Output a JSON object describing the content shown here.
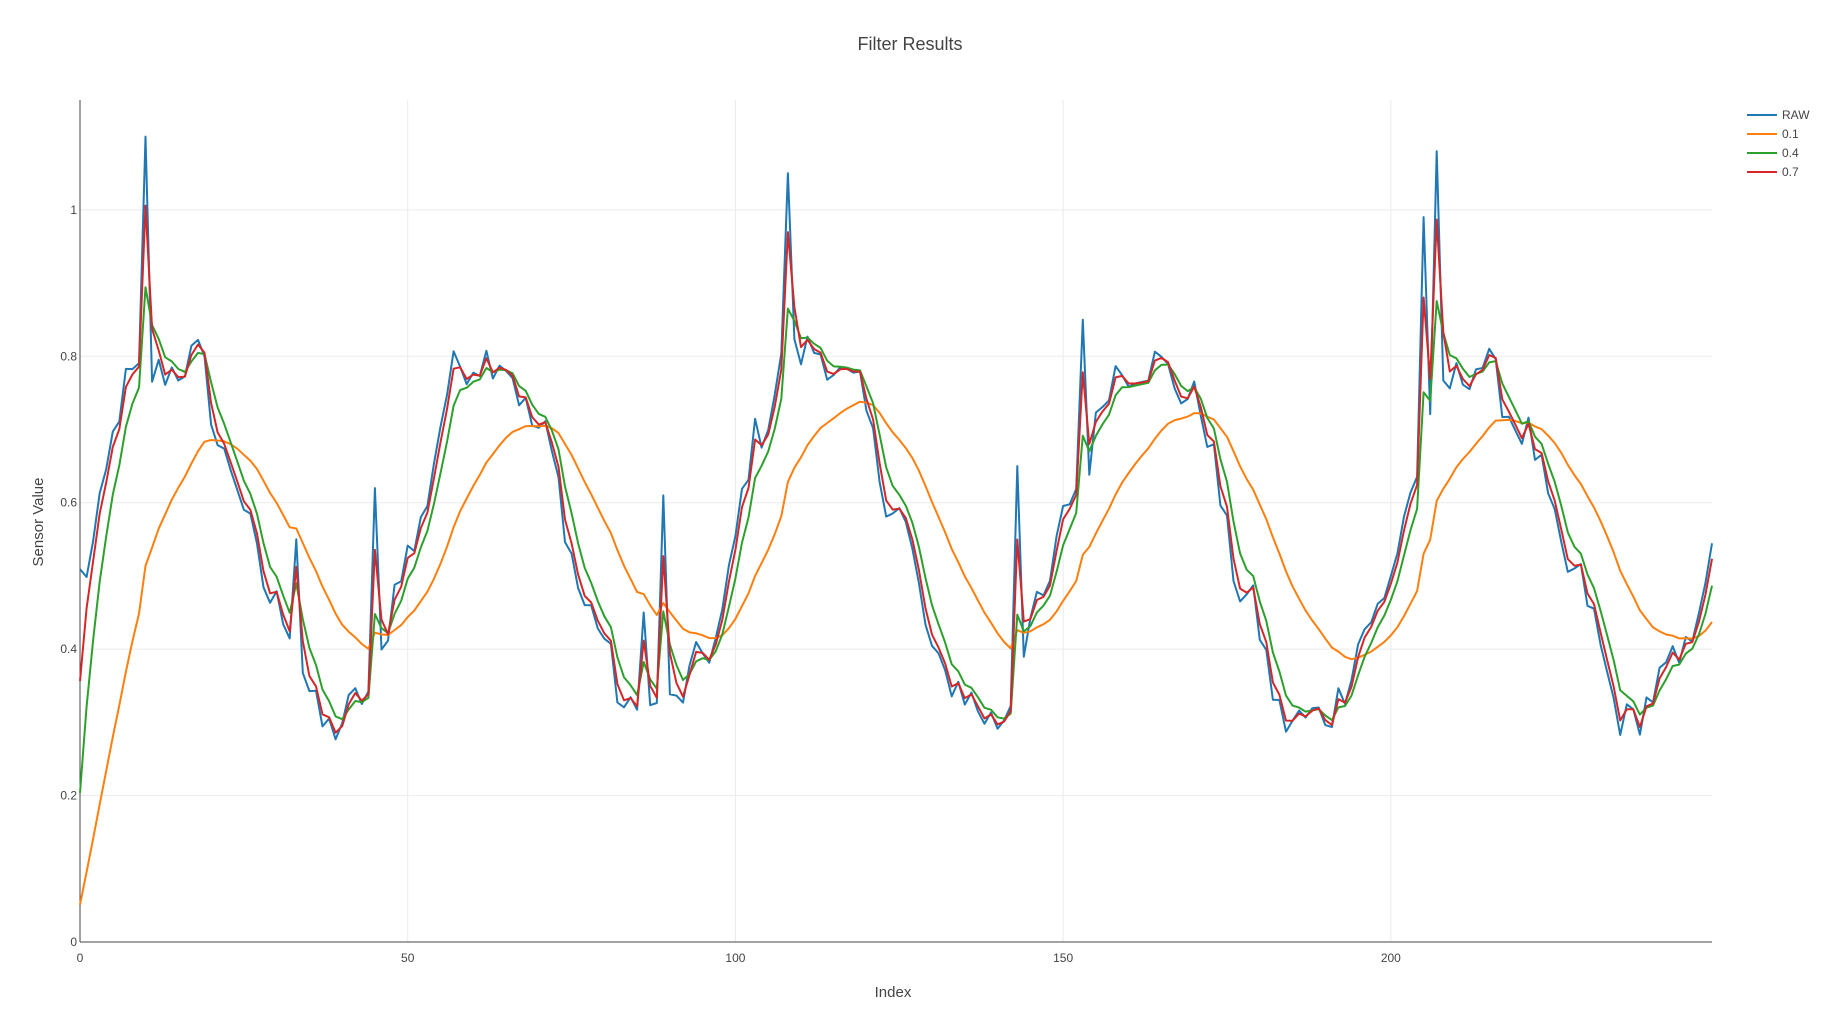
{
  "chart_data": {
    "type": "line",
    "title": "Filter Results",
    "xlabel": "Index",
    "ylabel": "Sensor Value",
    "xlim": [
      0,
      249
    ],
    "ylim": [
      0,
      1.15
    ],
    "xticks": [
      0,
      50,
      100,
      150,
      200
    ],
    "yticks": [
      0,
      0.2,
      0.4,
      0.6,
      0.8,
      1
    ],
    "grid": true,
    "legend": "top-right",
    "raw_base": {
      "description_points_x": [
        0,
        8,
        14,
        18,
        22,
        30,
        38,
        44,
        50,
        58,
        64,
        70,
        78,
        84,
        90,
        96,
        104,
        108,
        112,
        118,
        124,
        132,
        140,
        146,
        152,
        158,
        164,
        170,
        178,
        184,
        190,
        198,
        204,
        208,
        214,
        220,
        228,
        236,
        244,
        249
      ],
      "description_points_y": [
        0.5,
        0.77,
        0.78,
        0.8,
        0.66,
        0.46,
        0.29,
        0.34,
        0.53,
        0.79,
        0.8,
        0.7,
        0.45,
        0.31,
        0.32,
        0.4,
        0.7,
        0.8,
        0.81,
        0.76,
        0.6,
        0.36,
        0.3,
        0.45,
        0.62,
        0.78,
        0.79,
        0.74,
        0.47,
        0.3,
        0.31,
        0.45,
        0.63,
        0.76,
        0.79,
        0.7,
        0.5,
        0.3,
        0.38,
        0.52
      ],
      "spikes_x": [
        10,
        33,
        45,
        86,
        89,
        108,
        143,
        153,
        205,
        207
      ],
      "spikes_y": [
        1.1,
        0.55,
        0.62,
        0.45,
        0.61,
        1.05,
        0.65,
        0.85,
        0.99,
        1.08
      ]
    },
    "series": [
      {
        "name": "RAW",
        "color": "#1f77b4",
        "alpha": 1.0
      },
      {
        "name": "0.1",
        "color": "#ff7f0e",
        "alpha": 0.1
      },
      {
        "name": "0.4",
        "color": "#2ca02c",
        "alpha": 0.4
      },
      {
        "name": "0.7",
        "color": "#d62728",
        "alpha": 0.7
      }
    ]
  }
}
